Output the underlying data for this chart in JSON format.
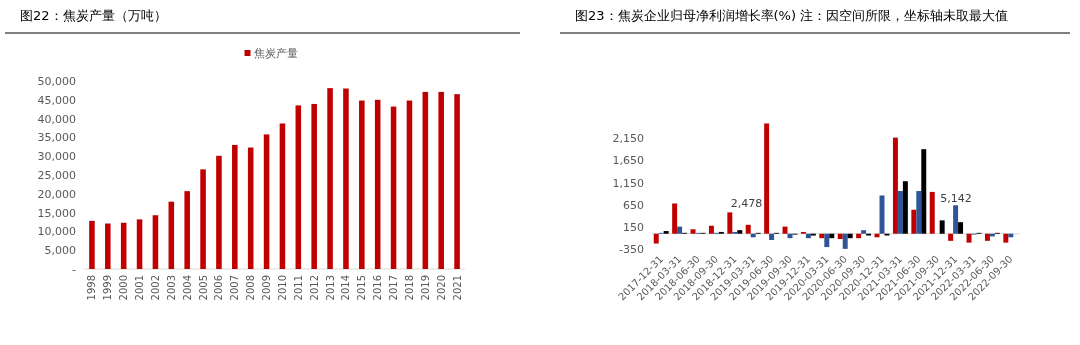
{
  "chart_data": [
    {
      "type": "bar",
      "title": "图22：焦炭产量（万吨）",
      "categories": [
        "1998",
        "1999",
        "2000",
        "2001",
        "2002",
        "2003",
        "2004",
        "2005",
        "2006",
        "2007",
        "2008",
        "2009",
        "2010",
        "2011",
        "2012",
        "2013",
        "2014",
        "2015",
        "2016",
        "2017",
        "2018",
        "2019",
        "2020",
        "2021"
      ],
      "series": [
        {
          "name": "焦炭产量",
          "color": "#c00000",
          "values": [
            12800,
            12100,
            12300,
            13200,
            14300,
            17900,
            20700,
            26500,
            30100,
            33000,
            32300,
            35800,
            38700,
            43500,
            43900,
            48100,
            48000,
            44800,
            45000,
            43200,
            44800,
            47100,
            47100,
            46500
          ]
        }
      ],
      "ylim": [
        0,
        50000
      ],
      "yticks": [
        {
          "value": 0,
          "label": "-"
        },
        {
          "value": 5000,
          "label": "5,000"
        },
        {
          "value": 10000,
          "label": "10,000"
        },
        {
          "value": 15000,
          "label": "15,000"
        },
        {
          "value": 20000,
          "label": "20,000"
        },
        {
          "value": 25000,
          "label": "25,000"
        },
        {
          "value": 30000,
          "label": "30,000"
        },
        {
          "value": 35000,
          "label": "35,000"
        },
        {
          "value": 40000,
          "label": "40,000"
        },
        {
          "value": 45000,
          "label": "45,000"
        },
        {
          "value": 50000,
          "label": "50,000"
        }
      ],
      "legend": "top"
    },
    {
      "type": "bar",
      "title": "图23：焦炭企业归母净利润增长率(%) 注：因空间所限，坐标轴未取最大值",
      "categories": [
        "2017-12-31",
        "2018-03-31",
        "2018-06-30",
        "2018-09-30",
        "2018-12-31",
        "2019-03-31",
        "2019-06-30",
        "2019-09-30",
        "2019-12-31",
        "2020-03-31",
        "2020-06-30",
        "2020-09-30",
        "2020-12-31",
        "2021-03-31",
        "2021-06-30",
        "2021-09-30",
        "2021-12-31",
        "2022-03-31",
        "2022-06-30",
        "2022-09-30"
      ],
      "series": [
        {
          "color": "#c00000",
          "values": [
            -220,
            680,
            100,
            180,
            480,
            200,
            2478,
            160,
            40,
            -100,
            -120,
            -100,
            -80,
            2160,
            540,
            940,
            -160,
            -200,
            -160,
            -200
          ]
        },
        {
          "color": "#2f5597",
          "values": [
            20,
            160,
            20,
            20,
            40,
            -80,
            -140,
            -100,
            -100,
            -300,
            -340,
            80,
            860,
            960,
            960,
            null,
            640,
            -20,
            -60,
            -80
          ]
        },
        {
          "color": "#000000",
          "values": [
            60,
            20,
            20,
            40,
            80,
            20,
            20,
            -20,
            -40,
            -100,
            -100,
            -40,
            -40,
            1180,
            1900,
            300,
            260,
            20,
            20,
            null
          ]
        }
      ],
      "ylim": [
        -350,
        2500
      ],
      "yticks": [
        {
          "value": -350,
          "label": "-350"
        },
        {
          "value": 150,
          "label": "150"
        },
        {
          "value": 650,
          "label": "650"
        },
        {
          "value": 1150,
          "label": "1,150"
        },
        {
          "value": 1650,
          "label": "1,650"
        },
        {
          "value": 2150,
          "label": "2,150"
        }
      ],
      "annotations": [
        {
          "text": "2,478",
          "x": "2019-06-30",
          "y": 600
        },
        {
          "text": "5,142",
          "x": "2021-09-30",
          "y": 720
        }
      ]
    }
  ]
}
